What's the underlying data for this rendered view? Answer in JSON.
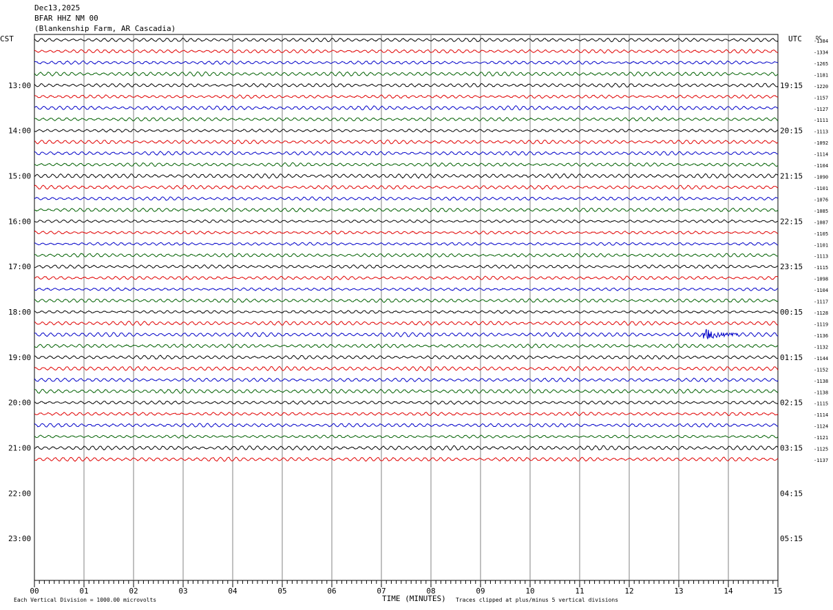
{
  "header": {
    "date": "Dec13,2025",
    "station": "BFAR HHZ NM 00",
    "location": "(Blankenship Farm, AR Cascadia)"
  },
  "labels": {
    "left_tz": "CST",
    "right_tz": "UTC",
    "dc": "DC",
    "xaxis_title": "TIME (MINUTES)",
    "scale_note": "Each Vertical Division = 1000.00 microvolts",
    "clip_note": "Traces clipped at plus/minus 5 vertical divisions"
  },
  "colors": {
    "trace_cycle": [
      "#000000",
      "#e00000",
      "#0000c8",
      "#006000"
    ],
    "grid": "#808080"
  },
  "chart_data": {
    "type": "line",
    "title": "BFAR HHZ NM 00",
    "xlabel": "TIME (MINUTES)",
    "x_range": [
      0,
      15
    ],
    "x_ticks": [
      "00",
      "01",
      "02",
      "03",
      "04",
      "05",
      "06",
      "07",
      "08",
      "09",
      "10",
      "11",
      "12",
      "13",
      "14",
      "15"
    ],
    "left_hour_labels": [
      "13:00",
      "14:00",
      "15:00",
      "16:00",
      "17:00",
      "18:00",
      "19:00",
      "20:00",
      "21:00",
      "22:00",
      "23:00"
    ],
    "right_hour_labels": [
      "19:15",
      "20:15",
      "21:15",
      "22:15",
      "23:15",
      "00:15",
      "01:15",
      "02:15",
      "03:15",
      "04:15",
      "05:15"
    ],
    "dc_offsets": [
      -1384,
      -1334,
      -1265,
      -1181,
      -1220,
      -1157,
      -1127,
      -1111,
      -1113,
      -1092,
      -1114,
      -1104,
      -1090,
      -1101,
      -1076,
      -1085,
      -1087,
      -1105,
      -1101,
      -1113,
      -1115,
      -1098,
      -1104,
      -1117,
      -1128,
      -1119,
      -1136,
      -1132,
      -1144,
      -1152,
      -1138,
      -1138,
      -1115,
      -1114,
      -1124,
      -1121,
      -1125,
      -1137
    ],
    "event": {
      "trace_index": 26,
      "minute_start": 13.5,
      "minute_end": 14.2
    }
  }
}
